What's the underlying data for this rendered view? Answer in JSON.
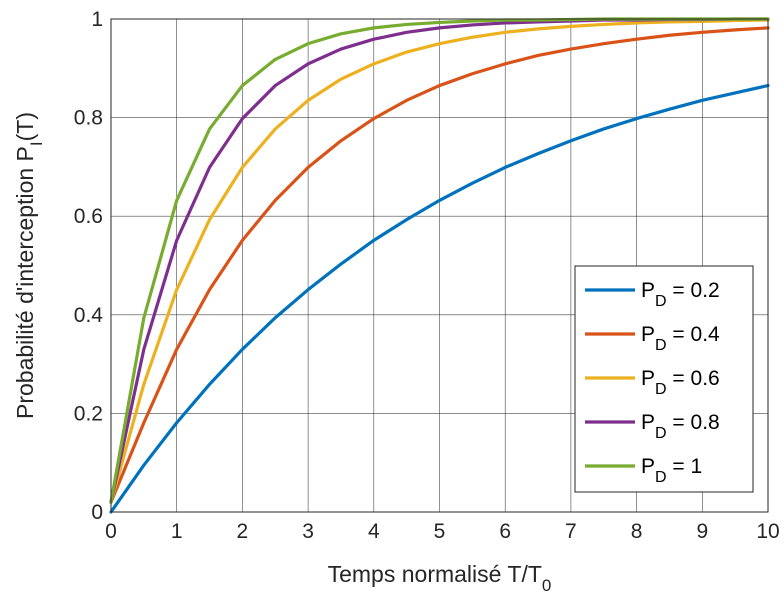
{
  "chart_data": {
    "type": "line",
    "xlabel": {
      "main": "Temps normalisé T/T",
      "sub": "0"
    },
    "ylabel": {
      "main": "Probabilité d'interception P",
      "sub": "I",
      "tail": "(T)"
    },
    "xlim": [
      0,
      10
    ],
    "ylim": [
      0,
      1
    ],
    "x_ticks": [
      "0",
      "1",
      "2",
      "3",
      "4",
      "5",
      "6",
      "7",
      "8",
      "9",
      "10"
    ],
    "y_ticks": [
      "0",
      "0.2",
      "0.4",
      "0.6",
      "0.8",
      "1"
    ],
    "grid": true,
    "legend_position": "lower-right",
    "x": [
      0,
      0.5,
      1,
      1.5,
      2,
      2.5,
      3,
      3.5,
      4,
      4.5,
      5,
      5.5,
      6,
      6.5,
      7,
      7.5,
      8,
      8.5,
      9,
      9.5,
      10
    ],
    "series": [
      {
        "name_prefix": "P",
        "name_sub": "D",
        "name_suffix": " = 0.2",
        "color": "#0072BD",
        "values": [
          0.0,
          0.095,
          0.181,
          0.259,
          0.33,
          0.394,
          0.451,
          0.503,
          0.551,
          0.593,
          0.632,
          0.667,
          0.699,
          0.727,
          0.753,
          0.777,
          0.798,
          0.817,
          0.835,
          0.85,
          0.865
        ]
      },
      {
        "name_prefix": "P",
        "name_sub": "D",
        "name_suffix": " = 0.4",
        "color": "#D95319",
        "values": [
          0.02,
          0.181,
          0.33,
          0.451,
          0.551,
          0.632,
          0.699,
          0.753,
          0.798,
          0.835,
          0.865,
          0.889,
          0.909,
          0.926,
          0.939,
          0.95,
          0.959,
          0.967,
          0.973,
          0.978,
          0.982
        ]
      },
      {
        "name_prefix": "P",
        "name_sub": "D",
        "name_suffix": " = 0.6",
        "color": "#EDB120",
        "values": [
          0.02,
          0.259,
          0.451,
          0.593,
          0.699,
          0.777,
          0.835,
          0.878,
          0.909,
          0.933,
          0.95,
          0.963,
          0.973,
          0.98,
          0.985,
          0.989,
          0.992,
          0.994,
          0.995,
          0.997,
          0.998
        ]
      },
      {
        "name_prefix": "P",
        "name_sub": "D",
        "name_suffix": " = 0.8",
        "color": "#7E2F8E",
        "values": [
          0.02,
          0.33,
          0.551,
          0.699,
          0.798,
          0.865,
          0.909,
          0.939,
          0.959,
          0.973,
          0.982,
          0.988,
          0.992,
          0.994,
          0.996,
          0.998,
          0.998,
          0.999,
          0.999,
          1.0,
          1.0
        ]
      },
      {
        "name_prefix": "P",
        "name_sub": "D",
        "name_suffix": " = 1",
        "color": "#77AC30",
        "values": [
          0.02,
          0.394,
          0.632,
          0.777,
          0.865,
          0.918,
          0.95,
          0.97,
          0.982,
          0.989,
          0.993,
          0.996,
          0.998,
          0.998,
          0.999,
          1.0,
          1.0,
          1.0,
          1.0,
          1.0,
          1.0
        ]
      }
    ]
  }
}
